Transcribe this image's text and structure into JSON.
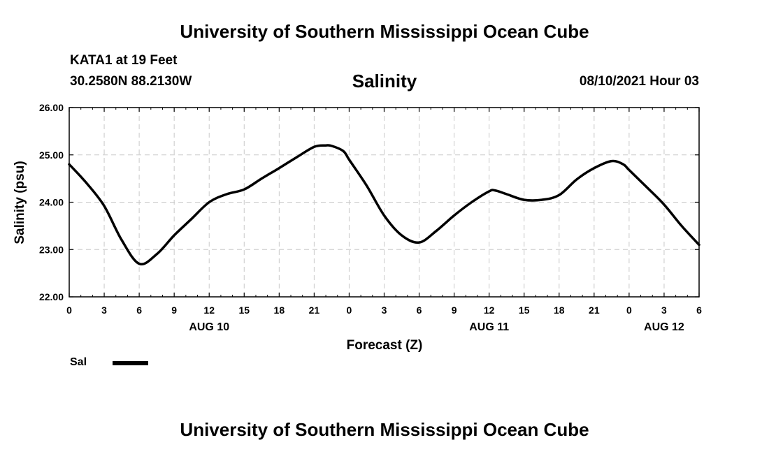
{
  "header": {
    "title": "University of Southern Mississippi Ocean Cube",
    "station": "KATA1 at 19 Feet",
    "coordinates": "30.2580N  88.2130W",
    "issued": "08/10/2021 Hour 03"
  },
  "footer": {
    "title": "University of Southern Mississippi Ocean Cube"
  },
  "legend": {
    "label": "Sal",
    "color": "#000000"
  },
  "chart_data": {
    "type": "line",
    "title": "Salinity",
    "xlabel": "Forecast (Z)",
    "ylabel": "Salinity (psu)",
    "ylim": [
      22.0,
      26.0
    ],
    "xlim": [
      0,
      54
    ],
    "grid": true,
    "legend_position": "bottom-left",
    "x_ticks": [
      0,
      3,
      6,
      9,
      12,
      15,
      18,
      21,
      24,
      27,
      30,
      33,
      36,
      39,
      42,
      45,
      48,
      51,
      54
    ],
    "x_tick_labels": [
      "0",
      "3",
      "6",
      "9",
      "12",
      "15",
      "18",
      "21",
      "0",
      "3",
      "6",
      "9",
      "12",
      "15",
      "18",
      "21",
      "0",
      "3",
      "6"
    ],
    "y_ticks": [
      22.0,
      23.0,
      24.0,
      25.0,
      26.0
    ],
    "y_tick_labels": [
      "22.00",
      "23.00",
      "24.00",
      "25.00",
      "26.00"
    ],
    "date_labels": [
      {
        "x": 12,
        "label": "AUG 10"
      },
      {
        "x": 36,
        "label": "AUG 11"
      },
      {
        "x": 51,
        "label": "AUG 12"
      }
    ],
    "series": [
      {
        "name": "Sal",
        "x": [
          0,
          1.5,
          3,
          4.5,
          6,
          7.5,
          9,
          10.5,
          12,
          13.5,
          15,
          16.5,
          18,
          19.5,
          21,
          22,
          22.5,
          23.5,
          24,
          25.5,
          27,
          28.5,
          30,
          31.5,
          33,
          34.5,
          36,
          36.5,
          37.5,
          39,
          40.5,
          42,
          43.5,
          45,
          46.5,
          47.5,
          48,
          49.5,
          51,
          52.5,
          54
        ],
        "values": [
          24.8,
          24.4,
          23.92,
          23.2,
          22.7,
          22.9,
          23.3,
          23.65,
          24.0,
          24.17,
          24.27,
          24.5,
          24.72,
          24.95,
          25.17,
          25.2,
          25.19,
          25.08,
          24.9,
          24.35,
          23.72,
          23.3,
          23.15,
          23.4,
          23.72,
          24.0,
          24.23,
          24.25,
          24.17,
          24.05,
          24.05,
          24.15,
          24.48,
          24.72,
          24.87,
          24.8,
          24.68,
          24.32,
          23.95,
          23.5,
          23.1
        ]
      }
    ]
  }
}
